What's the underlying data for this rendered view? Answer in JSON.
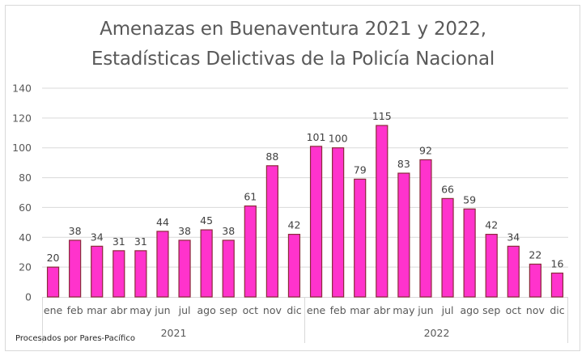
{
  "chart_data": {
    "type": "bar",
    "title": "Amenazas en Buenaventura 2021 y 2022,",
    "subtitle": "Estadísticas Delictivas de la Policía Nacional",
    "xlabel": "",
    "ylabel": "",
    "ylim": [
      0,
      140
    ],
    "yticks": [
      0,
      20,
      40,
      60,
      80,
      100,
      120,
      140
    ],
    "grid": true,
    "legend": "none",
    "groups": [
      {
        "label": "2021",
        "categories": [
          "ene",
          "feb",
          "mar",
          "abr",
          "may",
          "jun",
          "jul",
          "ago",
          "sep",
          "oct",
          "nov",
          "dic"
        ],
        "values": [
          20,
          38,
          34,
          31,
          31,
          44,
          38,
          45,
          38,
          61,
          88,
          42
        ]
      },
      {
        "label": "2022",
        "categories": [
          "ene",
          "feb",
          "mar",
          "abr",
          "may",
          "jun",
          "jul",
          "ago",
          "sep",
          "oct",
          "nov",
          "dic"
        ],
        "values": [
          101,
          100,
          79,
          115,
          83,
          92,
          66,
          59,
          42,
          34,
          22,
          16
        ]
      }
    ],
    "data_labels": true,
    "bar_color": "#ff33cc",
    "bar_border_color": "#8b2a3a",
    "annotations": [
      "Procesados por Pares-Pacífico"
    ]
  }
}
